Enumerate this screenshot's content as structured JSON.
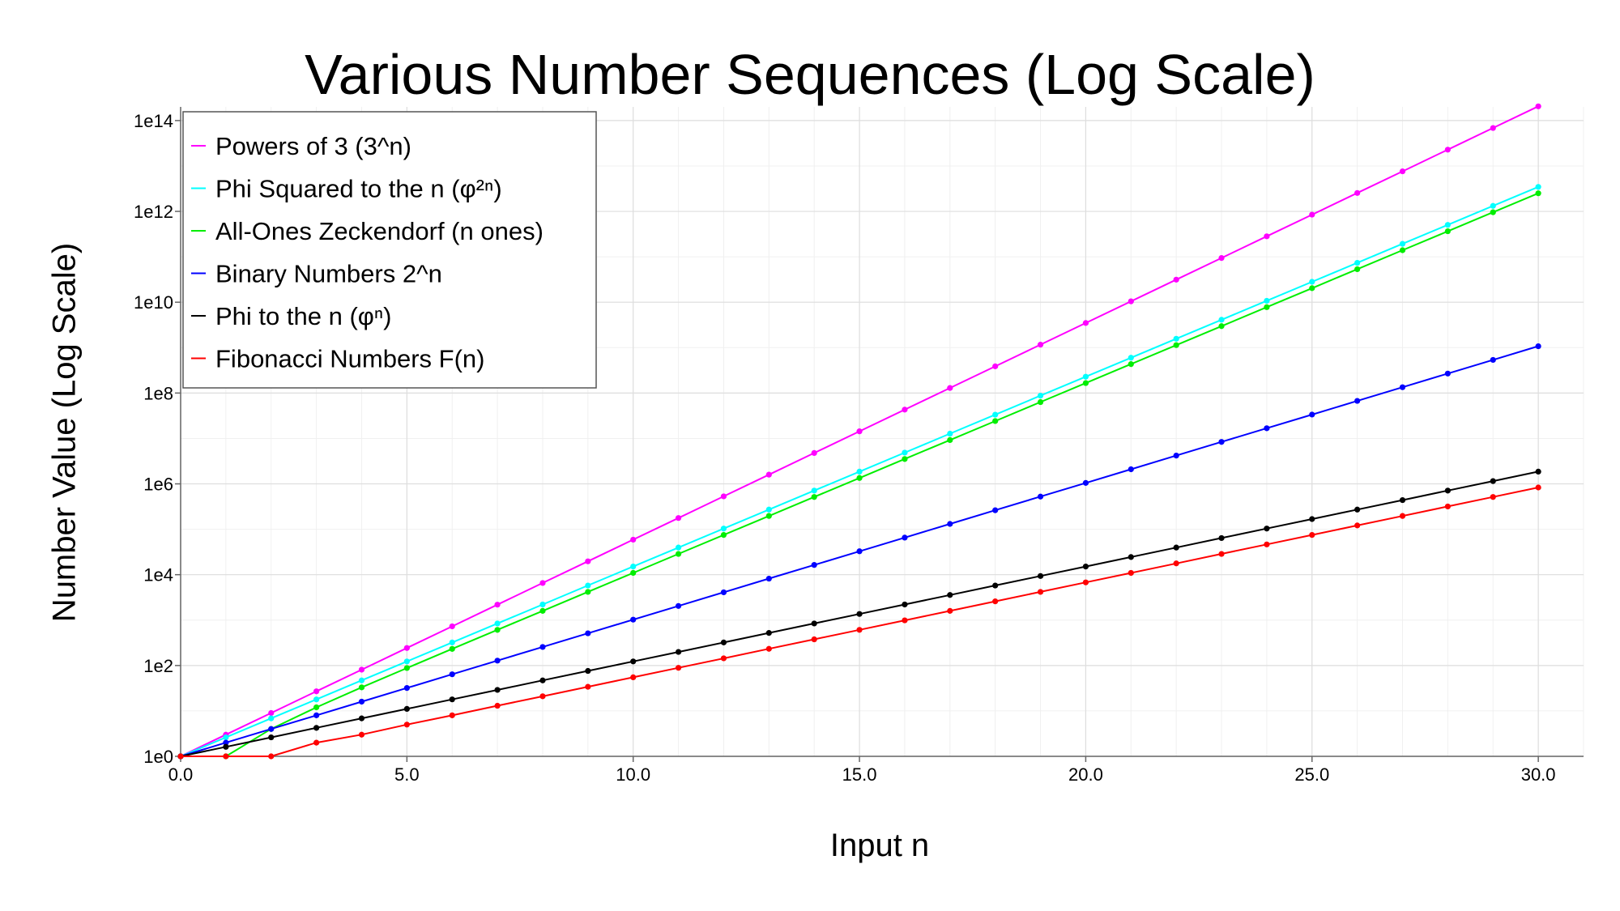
{
  "chart_data": {
    "type": "line",
    "title": "Various Number Sequences (Log Scale)",
    "xlabel": "Input n",
    "ylabel": "Number Value (Log Scale)",
    "x_scale": "linear",
    "y_scale": "log",
    "xlim": [
      0,
      31
    ],
    "ylim": [
      1,
      200000000000000
    ],
    "grid": true,
    "legend_position": "top-left",
    "x_tick_labels": [
      "0.0",
      "5.0",
      "10.0",
      "15.0",
      "20.0",
      "25.0",
      "30.0"
    ],
    "x_ticks": [
      0,
      5,
      10,
      15,
      20,
      25,
      30
    ],
    "y_tick_labels": [
      "1e0",
      "1e2",
      "1e4",
      "1e6",
      "1e8",
      "1e10",
      "1e12",
      "1e14"
    ],
    "y_ticks": [
      1,
      100,
      10000,
      1000000,
      100000000,
      10000000000,
      1000000000000,
      100000000000000
    ],
    "x": [
      0,
      1,
      2,
      3,
      4,
      5,
      6,
      7,
      8,
      9,
      10,
      11,
      12,
      13,
      14,
      15,
      16,
      17,
      18,
      19,
      20,
      21,
      22,
      23,
      24,
      25,
      26,
      27,
      28,
      29,
      30
    ],
    "series": [
      {
        "name": "Powers of 3 (3^n)",
        "color": "#ff00ff",
        "values": [
          1,
          3,
          9,
          27,
          81,
          243,
          729,
          2187,
          6561,
          19683,
          59049,
          177147,
          531441,
          1594323,
          4782969,
          14348907,
          43046721,
          129140163,
          387420489,
          1162261467,
          3486784401,
          10460353203,
          31381059609,
          94143178827,
          282429536481,
          847288609443,
          2541865828329,
          7625597484987,
          22876792454961,
          68630377364883,
          205891132094649
        ]
      },
      {
        "name": "Phi Squared to the n (φ²ⁿ)",
        "color": "#00ffff",
        "values": [
          1,
          2.618,
          6.854,
          17.944,
          46.979,
          122.99,
          321.99,
          842.99,
          2207,
          5778,
          15127,
          39603,
          103682,
          271443,
          710647,
          1860498,
          4870847,
          12752043,
          33385282,
          87403803,
          228826127,
          599074579,
          1568397607,
          4106118243,
          10749957122,
          28143753123,
          73681302247,
          192900153618,
          505019158607,
          1322157322203,
          3461452808002
        ]
      },
      {
        "name": "All-Ones Zeckendorf (n ones)",
        "color": "#00ee00",
        "values": [
          1,
          1,
          4,
          12,
          33,
          88,
          232,
          609,
          1596,
          4180,
          10945,
          28656,
          75024,
          196417,
          514228,
          1346268,
          3524577,
          9227464,
          24157816,
          63245985,
          165580140,
          433494436,
          1134903169,
          2971215072,
          7778742048,
          20365011073,
          53316291172,
          139583862444,
          365435296161,
          956722026040,
          2504730781960
        ]
      },
      {
        "name": "Binary Numbers 2^n",
        "color": "#0000ff",
        "values": [
          1,
          2,
          4,
          8,
          16,
          32,
          64,
          128,
          256,
          512,
          1024,
          2048,
          4096,
          8192,
          16384,
          32768,
          65536,
          131072,
          262144,
          524288,
          1048576,
          2097152,
          4194304,
          8388608,
          16777216,
          33554432,
          67108864,
          134217728,
          268435456,
          536870912,
          1073741824
        ]
      },
      {
        "name": "Phi to the n (φⁿ)",
        "color": "#000000",
        "values": [
          1,
          1.618,
          2.618,
          4.236,
          6.854,
          11.09,
          17.944,
          29.034,
          46.979,
          76.013,
          122.99,
          199.01,
          321.99,
          521.0,
          842.99,
          1364.0,
          2207,
          3571,
          5778,
          9349,
          15127,
          24476,
          39603,
          64079,
          103682,
          167761,
          271443,
          439204,
          710647,
          1149851,
          1860498
        ]
      },
      {
        "name": "Fibonacci Numbers F(n)",
        "color": "#ff0000",
        "values": [
          1,
          1,
          1,
          2,
          3,
          5,
          8,
          13,
          21,
          34,
          55,
          89,
          144,
          233,
          377,
          610,
          987,
          1597,
          2584,
          4181,
          6765,
          10946,
          17711,
          28657,
          46368,
          75025,
          121393,
          196418,
          317811,
          514229,
          832040
        ]
      }
    ]
  }
}
